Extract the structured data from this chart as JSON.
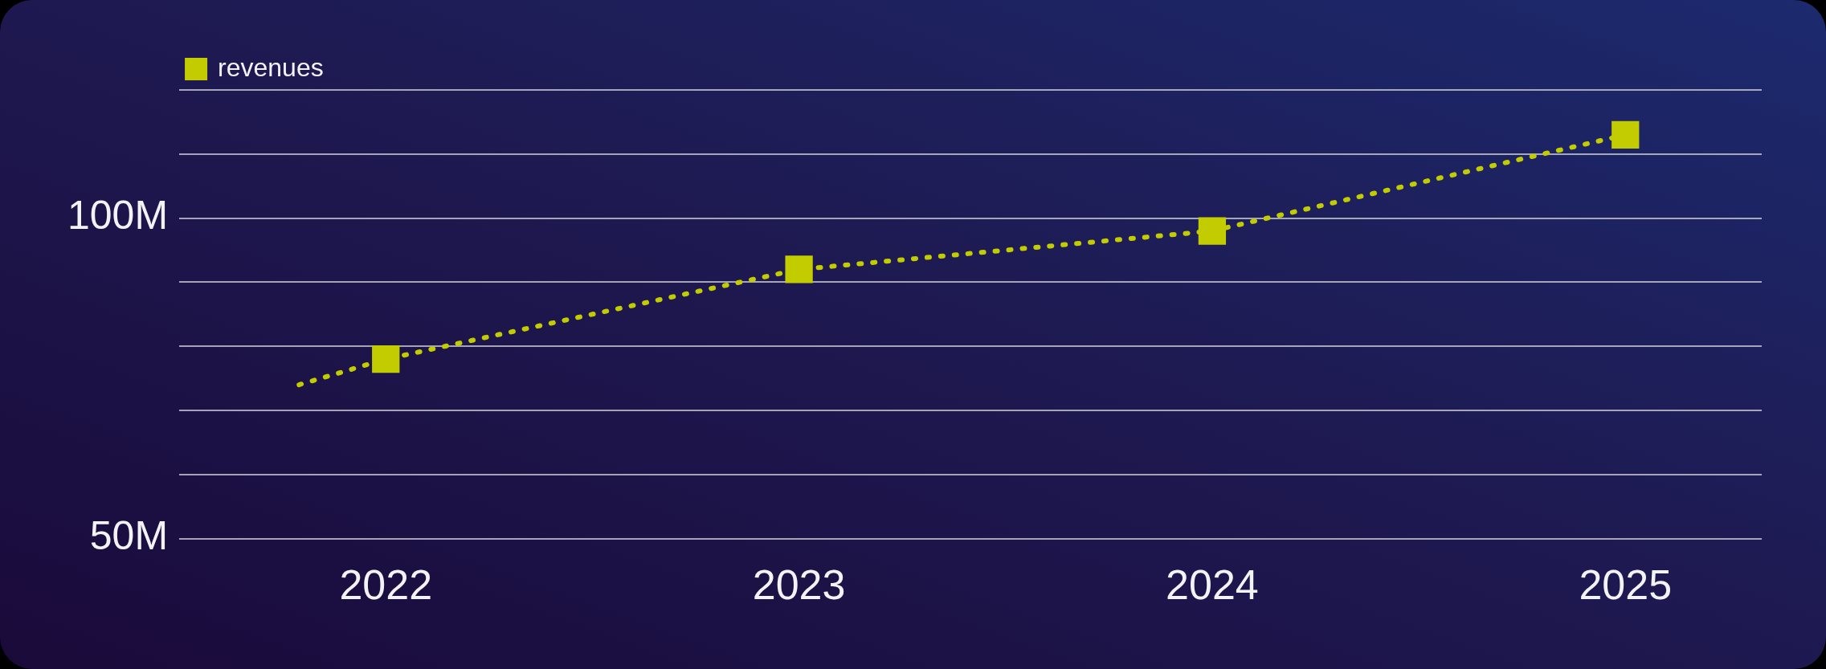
{
  "chart_data": {
    "type": "scatter",
    "xlim": [
      2021.5,
      2025.33
    ],
    "xticks": [
      2022,
      2023,
      2024,
      2025
    ],
    "ylim": [
      50,
      120
    ],
    "yticks": [
      {
        "value": 50,
        "label": "50M"
      },
      {
        "value": 60,
        "label": null
      },
      {
        "value": 70,
        "label": null
      },
      {
        "value": 80,
        "label": null
      },
      {
        "value": 90,
        "label": null
      },
      {
        "value": 100,
        "label": "100M"
      },
      {
        "value": 110,
        "label": null
      },
      {
        "value": 120,
        "label": null
      }
    ],
    "grid": "y",
    "legend": "top left",
    "series": [
      {
        "name": "revenues",
        "type": "scatter",
        "color": "#c2cc00",
        "marker": "square",
        "x": [
          2022,
          2023,
          2024,
          2025
        ],
        "values": [
          78,
          92,
          98,
          113
        ]
      },
      {
        "type": "line",
        "color": "#c2cc00",
        "marker": "none",
        "line_style": "dotted",
        "x": [
          2021.79,
          2022,
          2023,
          2024,
          2025
        ],
        "values": [
          74,
          78,
          92,
          98,
          113
        ]
      }
    ]
  }
}
